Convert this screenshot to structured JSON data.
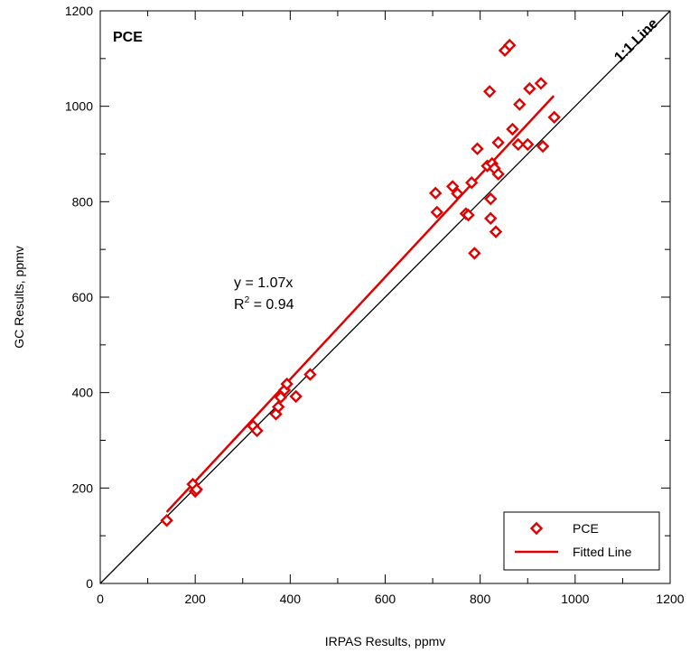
{
  "chart_data": {
    "type": "scatter",
    "panel_label": "PCE",
    "xlabel": "IRPAS Results, ppmv",
    "ylabel": "GC Results, ppmv",
    "xlim": [
      0,
      1200
    ],
    "ylim": [
      0,
      1200
    ],
    "x_ticks": [
      "0",
      "200",
      "400",
      "600",
      "800",
      "1000",
      "1200"
    ],
    "y_ticks": [
      "0",
      "200",
      "400",
      "600",
      "800",
      "1000",
      "1200"
    ],
    "grid": false,
    "identity_line_label": "1:1 Line",
    "equation": "y = 1.07x",
    "r_squared": {
      "prefix": "R",
      "sup": "2",
      "suffix": " = 0.94"
    },
    "fit": {
      "slope": 1.07,
      "x_range": [
        140,
        955
      ],
      "color": "#e00000"
    },
    "marker_color": "#e00000",
    "legend": {
      "position": "bottom-right",
      "entries": [
        {
          "label": "PCE",
          "kind": "marker"
        },
        {
          "label": "Fitted Line",
          "kind": "line"
        }
      ]
    },
    "series": [
      {
        "name": "PCE",
        "points": [
          [
            140,
            132
          ],
          [
            195,
            208
          ],
          [
            200,
            193
          ],
          [
            203,
            197
          ],
          [
            322,
            330
          ],
          [
            330,
            320
          ],
          [
            370,
            355
          ],
          [
            375,
            370
          ],
          [
            380,
            390
          ],
          [
            388,
            405
          ],
          [
            393,
            418
          ],
          [
            412,
            392
          ],
          [
            442,
            438
          ],
          [
            706,
            818
          ],
          [
            709,
            778
          ],
          [
            742,
            832
          ],
          [
            752,
            817
          ],
          [
            770,
            775
          ],
          [
            775,
            772
          ],
          [
            782,
            840
          ],
          [
            788,
            692
          ],
          [
            794,
            911
          ],
          [
            815,
            875
          ],
          [
            820,
            1031
          ],
          [
            822,
            806
          ],
          [
            822,
            765
          ],
          [
            825,
            880
          ],
          [
            830,
            870
          ],
          [
            833,
            737
          ],
          [
            838,
            858
          ],
          [
            838,
            924
          ],
          [
            852,
            1117
          ],
          [
            862,
            1128
          ],
          [
            868,
            952
          ],
          [
            880,
            920
          ],
          [
            883,
            1004
          ],
          [
            900,
            920
          ],
          [
            904,
            1037
          ],
          [
            928,
            1048
          ],
          [
            932,
            916
          ],
          [
            956,
            977
          ]
        ]
      }
    ]
  }
}
